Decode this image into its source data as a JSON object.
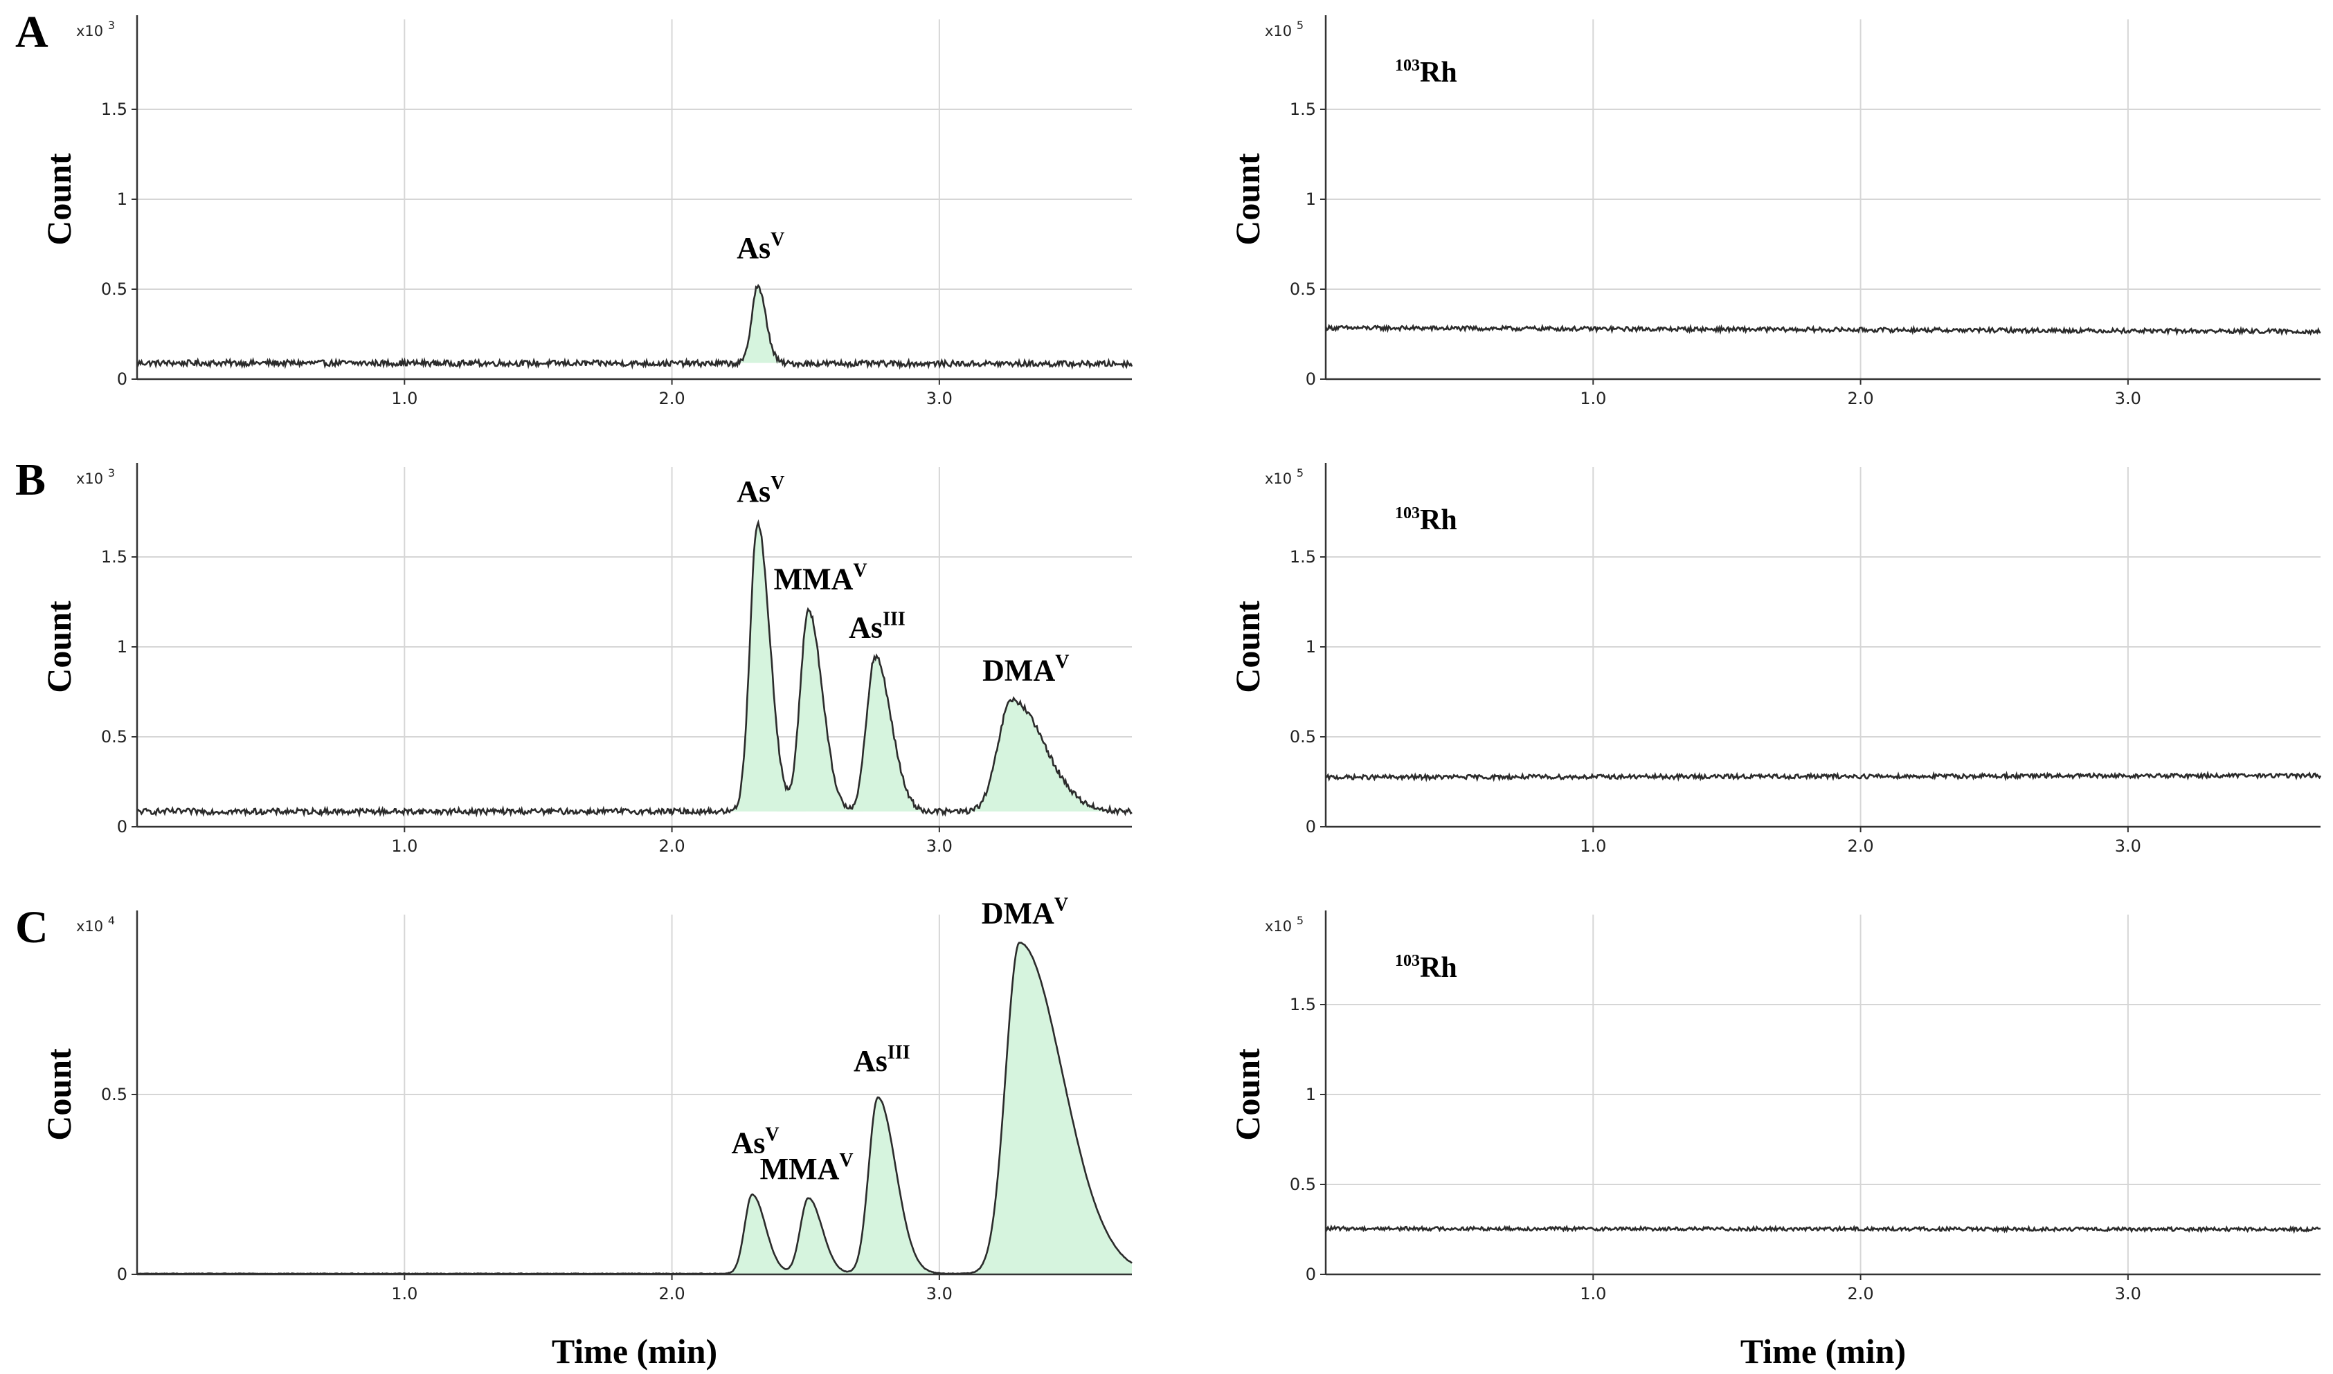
{
  "chart_data": [
    {
      "id": "A-left",
      "type": "line",
      "panel_label": "A",
      "ylabel": "Count",
      "multiplier": "x10",
      "multiplier_exp": "3",
      "xlim": [
        0,
        3.72
      ],
      "ylim": [
        0,
        2.0
      ],
      "xticks": [
        1.0,
        2.0,
        3.0
      ],
      "xtick_labels": [
        "1.0",
        "2.0",
        "3.0"
      ],
      "yticks": [
        0,
        0.5,
        1,
        1.5
      ],
      "ytick_labels": [
        "0",
        "0.5",
        "1",
        "1.5"
      ],
      "baseline": 0.09,
      "noise": 0.008,
      "trend": -0.005,
      "peaks": [
        {
          "name": "As",
          "sup": "V",
          "rt": 2.32,
          "height": 0.43,
          "sigma": 0.022,
          "tail": 0.005
        }
      ]
    },
    {
      "id": "A-right",
      "type": "line",
      "ylabel": "Count",
      "multiplier": "x10",
      "multiplier_exp": "5",
      "isotope_mass": "103",
      "isotope_symbol": "Rh",
      "xlim": [
        0,
        3.72
      ],
      "ylim": [
        0,
        2.0
      ],
      "xticks": [
        1.0,
        2.0,
        3.0
      ],
      "xtick_labels": [
        "1.0",
        "2.0",
        "3.0"
      ],
      "yticks": [
        0,
        0.5,
        1,
        1.5
      ],
      "ytick_labels": [
        "0",
        "0.5",
        "1",
        "1.5"
      ],
      "baseline": 0.285,
      "noise": 0.006,
      "trend": -0.02,
      "peaks": []
    },
    {
      "id": "B-left",
      "type": "line",
      "panel_label": "B",
      "ylabel": "Count",
      "multiplier": "x10",
      "multiplier_exp": "3",
      "xlim": [
        0,
        3.72
      ],
      "ylim": [
        0,
        2.0
      ],
      "xticks": [
        1.0,
        2.0,
        3.0
      ],
      "xtick_labels": [
        "1.0",
        "2.0",
        "3.0"
      ],
      "yticks": [
        0,
        0.5,
        1,
        1.5
      ],
      "ytick_labels": [
        "0",
        "0.5",
        "1",
        "1.5"
      ],
      "baseline": 0.085,
      "noise": 0.008,
      "trend": 0.0,
      "peaks": [
        {
          "name": "As",
          "sup": "V",
          "rt": 2.32,
          "height": 1.6,
          "sigma": 0.028,
          "tail": 0.01
        },
        {
          "name": "MMA",
          "sup": "V",
          "rt": 2.51,
          "height": 1.12,
          "sigma": 0.03,
          "tail": 0.012
        },
        {
          "name": "As",
          "sup": "III",
          "rt": 2.76,
          "height": 0.86,
          "sigma": 0.032,
          "tail": 0.015
        },
        {
          "name": "DMA",
          "sup": "V",
          "rt": 3.27,
          "height": 0.62,
          "sigma": 0.05,
          "tail": 0.04
        }
      ]
    },
    {
      "id": "B-right",
      "type": "line",
      "ylabel": "Count",
      "multiplier": "x10",
      "multiplier_exp": "5",
      "isotope_mass": "103",
      "isotope_symbol": "Rh",
      "xlim": [
        0,
        3.72
      ],
      "ylim": [
        0,
        2.0
      ],
      "xticks": [
        1.0,
        2.0,
        3.0
      ],
      "xtick_labels": [
        "1.0",
        "2.0",
        "3.0"
      ],
      "yticks": [
        0,
        0.5,
        1,
        1.5
      ],
      "ytick_labels": [
        "0",
        "0.5",
        "1",
        "1.5"
      ],
      "baseline": 0.275,
      "noise": 0.006,
      "trend": 0.01,
      "peaks": []
    },
    {
      "id": "C-left",
      "type": "line",
      "panel_label": "C",
      "ylabel": "Count",
      "multiplier": "x10",
      "multiplier_exp": "4",
      "xlim": [
        0,
        3.72
      ],
      "ylim": [
        0,
        1.0
      ],
      "xticks": [
        1.0,
        2.0,
        3.0
      ],
      "xtick_labels": [
        "1.0",
        "2.0",
        "3.0"
      ],
      "yticks": [
        0,
        0.5
      ],
      "ytick_labels": [
        "0",
        "0.5"
      ],
      "baseline": 0.002,
      "noise": 0.0008,
      "trend": 0.0,
      "xlabel": "Time (min)",
      "peaks": [
        {
          "name": "As",
          "sup": "V",
          "rt": 2.3,
          "height": 0.22,
          "sigma": 0.028,
          "tail": 0.012
        },
        {
          "name": "MMA",
          "sup": "V",
          "rt": 2.51,
          "height": 0.21,
          "sigma": 0.03,
          "tail": 0.012
        },
        {
          "name": "As",
          "sup": "III",
          "rt": 2.77,
          "height": 0.49,
          "sigma": 0.034,
          "tail": 0.018
        },
        {
          "name": "DMA",
          "sup": "V",
          "rt": 3.3,
          "height": 0.92,
          "sigma": 0.052,
          "tail": 0.06
        }
      ]
    },
    {
      "id": "C-right",
      "type": "line",
      "ylabel": "Count",
      "multiplier": "x10",
      "multiplier_exp": "5",
      "isotope_mass": "103",
      "isotope_symbol": "Rh",
      "xlim": [
        0,
        3.72
      ],
      "ylim": [
        0,
        2.0
      ],
      "xticks": [
        1.0,
        2.0,
        3.0
      ],
      "xtick_labels": [
        "1.0",
        "2.0",
        "3.0"
      ],
      "yticks": [
        0,
        0.5,
        1,
        1.5
      ],
      "ytick_labels": [
        "0",
        "0.5",
        "1",
        "1.5"
      ],
      "baseline": 0.255,
      "noise": 0.005,
      "trend": -0.005,
      "xlabel": "Time (min)",
      "peaks": []
    }
  ],
  "colors": {
    "grid": "#d6d6d6",
    "axis": "#333333",
    "trace": "#2b2b2b",
    "peak_fill": "#d6f4de"
  }
}
